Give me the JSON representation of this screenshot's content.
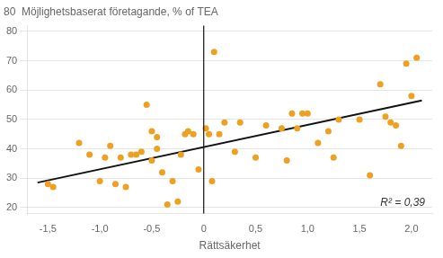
{
  "chart_data": {
    "type": "scatter",
    "title": "80  Möjlighetsbaserat företagande, % of TEA",
    "xlabel": "Rättsäkerhet",
    "annotation": "R² = 0,39",
    "series": [
      {
        "type": "scatter",
        "color": "#f0a020",
        "x": [
          -1.5,
          -1.45,
          -1.2,
          -1.1,
          -1.0,
          -0.95,
          -0.9,
          -0.85,
          -0.8,
          -0.75,
          -0.7,
          -0.65,
          -0.6,
          -0.55,
          -0.5,
          -0.5,
          -0.45,
          -0.45,
          -0.4,
          -0.35,
          -0.3,
          -0.25,
          -0.22,
          -0.18,
          -0.15,
          -0.1,
          -0.05,
          0.02,
          0.05,
          0.08,
          0.1,
          0.15,
          0.2,
          0.3,
          0.35,
          0.5,
          0.6,
          0.75,
          0.8,
          0.85,
          0.9,
          0.95,
          1.0,
          1.1,
          1.2,
          1.25,
          1.3,
          1.5,
          1.6,
          1.7,
          1.75,
          1.8,
          1.85,
          1.9,
          1.95,
          2.0,
          2.05
        ],
        "values": [
          28,
          27,
          42,
          38,
          29,
          37,
          41,
          28,
          37,
          27,
          38,
          38,
          39,
          55,
          36,
          46,
          44,
          40,
          32,
          21,
          29,
          22,
          38,
          45,
          46,
          45,
          33,
          47,
          45,
          29,
          73,
          45,
          49,
          39,
          49,
          37,
          48,
          47,
          36,
          52,
          47,
          52,
          52,
          42,
          46,
          37,
          50,
          50,
          31,
          62,
          51,
          49,
          48,
          41,
          69,
          58,
          71
        ]
      },
      {
        "type": "line",
        "color": "#111111",
        "x": [
          -1.6,
          2.1
        ],
        "values": [
          28.5,
          56.5
        ]
      }
    ],
    "reference_lines": [
      {
        "x": 0.0,
        "color": "#111111"
      }
    ],
    "xlim": [
      -1.7,
      2.2
    ],
    "ylim": [
      18,
      82
    ],
    "xticks": [
      {
        "value": -1.5,
        "label": "-1,5"
      },
      {
        "value": -1.0,
        "label": "-1,0"
      },
      {
        "value": -0.5,
        "label": "-0,5"
      },
      0,
      {
        "value": 0.5,
        "label": "0,5"
      },
      {
        "value": 1.0,
        "label": "1,0"
      },
      {
        "value": 1.5,
        "label": "1,5"
      },
      {
        "value": 2.0,
        "label": "2,0"
      }
    ],
    "yticks": [
      20,
      30,
      40,
      50,
      60,
      70,
      80
    ],
    "grid": "y"
  }
}
